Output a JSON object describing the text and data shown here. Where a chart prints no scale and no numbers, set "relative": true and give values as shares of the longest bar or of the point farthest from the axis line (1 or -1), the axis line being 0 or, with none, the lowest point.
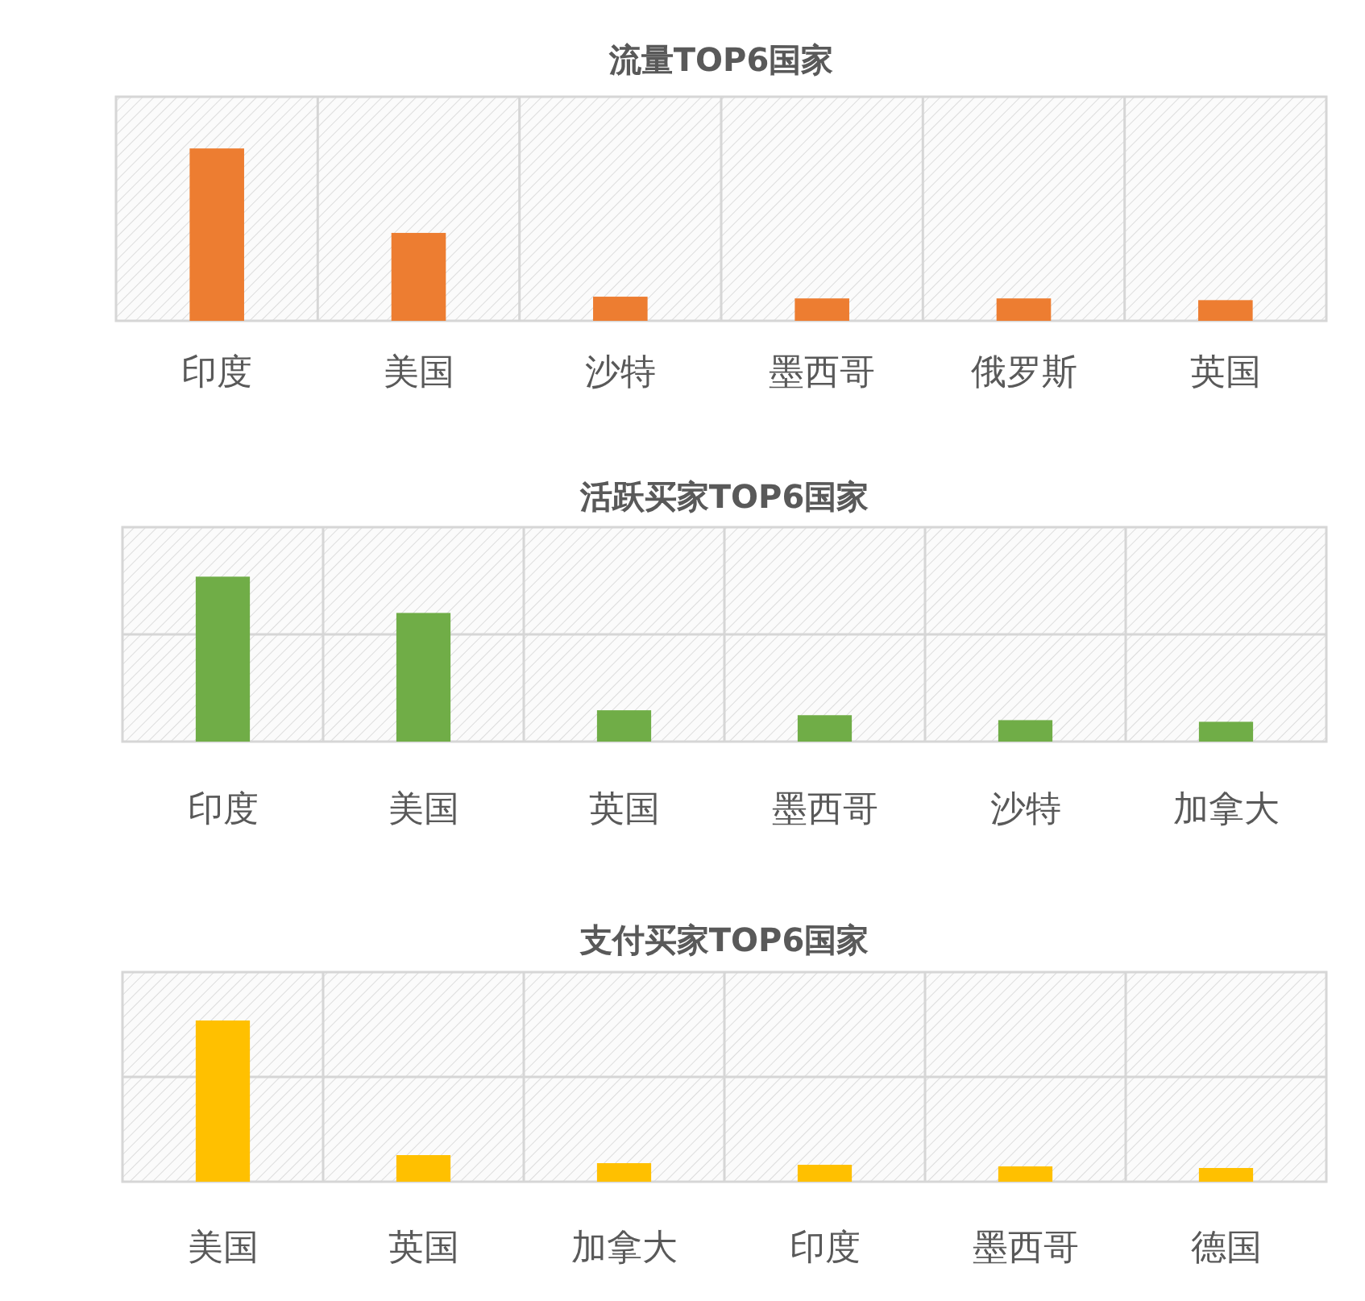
{
  "chart_data": [
    {
      "type": "bar",
      "title": "流量TOP6国家",
      "categories": [
        "印度",
        "美国",
        "沙特",
        "墨西哥",
        "俄罗斯",
        "英国"
      ],
      "values": [
        1,
        0.51,
        0.14,
        0.13,
        0.13,
        0.12
      ],
      "color": "#ed7d31",
      "relative": true,
      "grid": "x"
    },
    {
      "type": "bar",
      "title": "活跃买家TOP6国家",
      "categories": [
        "印度",
        "美国",
        "英国",
        "墨西哥",
        "沙特",
        "加拿大"
      ],
      "values": [
        1,
        0.78,
        0.19,
        0.16,
        0.13,
        0.12
      ],
      "color": "#70ad47",
      "relative": true,
      "grid": true
    },
    {
      "type": "bar",
      "title": "支付买家TOP6国家",
      "categories": [
        "美国",
        "英国",
        "加拿大",
        "印度",
        "墨西哥",
        "德国"
      ],
      "values": [
        1,
        0.165,
        0.115,
        0.105,
        0.095,
        0.085
      ],
      "color": "#ffc000",
      "relative": true,
      "grid": true
    }
  ]
}
